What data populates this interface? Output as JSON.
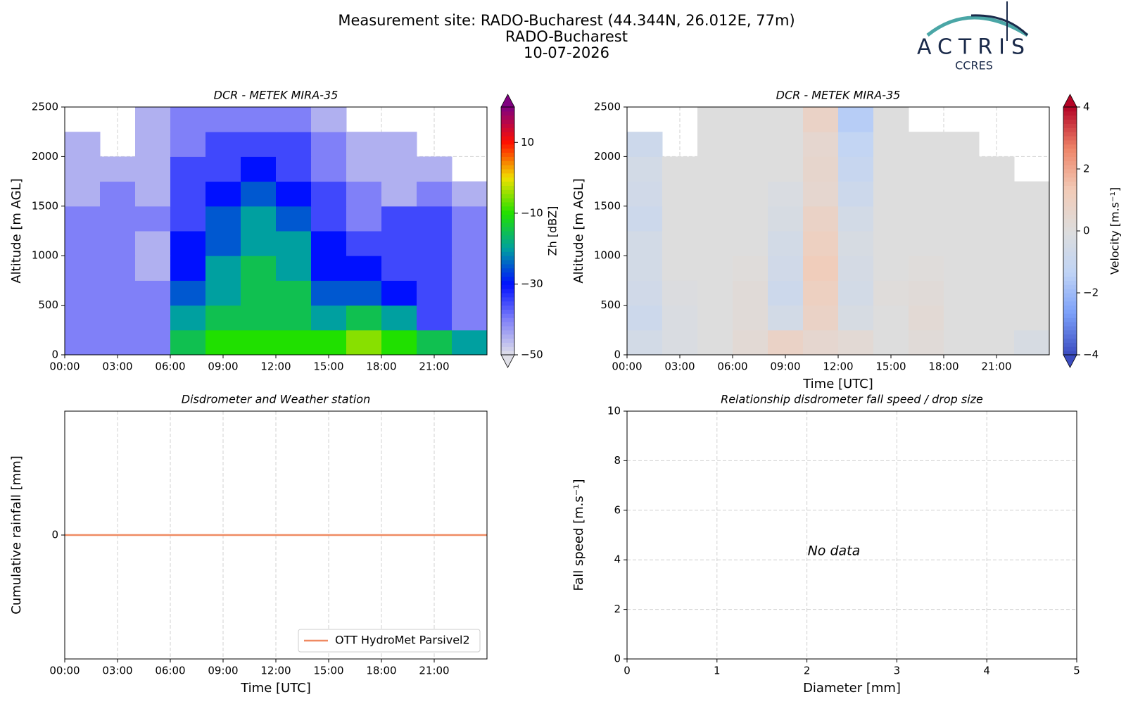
{
  "header": {
    "title_lines": [
      "Measurement site: RADO-Bucharest (44.344N, 26.012E, 77m)",
      "RADO-Bucharest",
      "10-07-2026"
    ],
    "logo": {
      "name": "ACTRIS",
      "subtitle": "CCRES"
    }
  },
  "chart_data": [
    {
      "type": "heatmap",
      "title": "DCR - METEK MIRA-35",
      "ylabel": "Altitude [m AGL]",
      "colorbar_label": "Zh [dBZ]",
      "x": [
        0,
        2,
        4,
        6,
        8,
        10,
        12,
        14,
        16,
        18,
        20,
        22,
        24
      ],
      "y": [
        0,
        250,
        500,
        750,
        1000,
        1250,
        1500,
        1750,
        2000,
        2250,
        2500
      ],
      "z": [
        [
          -40,
          -40,
          -40,
          -15,
          -10,
          -10,
          -10,
          -10,
          -5,
          -10,
          -15,
          -20
        ],
        [
          -40,
          -40,
          -40,
          -20,
          -15,
          -15,
          -15,
          -20,
          -15,
          -20,
          -35,
          -40
        ],
        [
          -40,
          -40,
          -40,
          -25,
          -20,
          -15,
          -15,
          -25,
          -25,
          -30,
          -35,
          -40
        ],
        [
          -40,
          -40,
          -45,
          -30,
          -20,
          -15,
          -20,
          -30,
          -30,
          -35,
          -35,
          -40
        ],
        [
          -40,
          -40,
          -45,
          -30,
          -25,
          -20,
          -20,
          -30,
          -35,
          -35,
          -35,
          -40
        ],
        [
          -40,
          -40,
          -40,
          -35,
          -25,
          -20,
          -25,
          -35,
          -40,
          -35,
          -35,
          -40
        ],
        [
          -45,
          -40,
          -45,
          -35,
          -30,
          -25,
          -30,
          -35,
          -40,
          -45,
          -40,
          -45
        ],
        [
          -45,
          -45,
          -45,
          -35,
          -35,
          -30,
          -35,
          -40,
          -45,
          -45,
          -45,
          null
        ],
        [
          -45,
          null,
          -45,
          -40,
          -35,
          -35,
          -35,
          -40,
          -45,
          -45,
          null,
          null
        ],
        [
          null,
          null,
          -45,
          -40,
          -40,
          -40,
          -40,
          -45,
          null,
          null,
          null,
          null
        ]
      ],
      "xlim": [
        0,
        24
      ],
      "xticks": [
        {
          "value": 0,
          "label": "00:00"
        },
        {
          "value": 3,
          "label": "03:00"
        },
        {
          "value": 6,
          "label": "06:00"
        },
        {
          "value": 9,
          "label": "09:00"
        },
        {
          "value": 12,
          "label": "12:00"
        },
        {
          "value": 15,
          "label": "15:00"
        },
        {
          "value": 18,
          "label": "18:00"
        },
        {
          "value": 21,
          "label": "21:00"
        }
      ],
      "ylim": [
        0,
        2500
      ],
      "yticks": [
        0,
        500,
        1000,
        1500,
        2000,
        2500
      ],
      "grid": true,
      "clim": [
        -50,
        20
      ],
      "cticks": [
        {
          "value": -50,
          "label": "−50"
        },
        {
          "value": -30,
          "label": "−30"
        },
        {
          "value": -10,
          "label": "−10"
        },
        10
      ],
      "colormap": [
        "#e0e0e8",
        "#8080f8",
        "#0010ff",
        "#00a0a0",
        "#20e000",
        "#f0e000",
        "#ff1000",
        "#800080"
      ]
    },
    {
      "type": "heatmap",
      "title": "DCR - METEK MIRA-35",
      "xlabel": "Time [UTC]",
      "ylabel": "Altitude [m AGL]",
      "colorbar_label": "Velocity [m.s⁻¹]",
      "x": [
        0,
        2,
        4,
        6,
        8,
        10,
        12,
        14,
        16,
        18,
        20,
        22,
        24
      ],
      "y": [
        0,
        250,
        500,
        750,
        1000,
        1250,
        1500,
        1750,
        2000,
        2250,
        2500
      ],
      "z": [
        [
          -0.5,
          -0.2,
          0,
          0.3,
          0.8,
          0.5,
          0.3,
          0,
          0.2,
          0,
          0,
          -0.3
        ],
        [
          -0.8,
          -0.2,
          0,
          0.2,
          -0.5,
          0.8,
          -0.3,
          0,
          0.3,
          0,
          0,
          0
        ],
        [
          -0.6,
          -0.1,
          0,
          0.2,
          -0.8,
          1,
          -0.5,
          0.1,
          0.2,
          0,
          0,
          0
        ],
        [
          -0.5,
          0,
          0,
          0.1,
          -0.6,
          1.2,
          -0.4,
          0,
          0.1,
          0,
          0,
          0
        ],
        [
          -0.5,
          0,
          0,
          0,
          -0.5,
          1,
          -0.3,
          0,
          0,
          0,
          0,
          0
        ],
        [
          -0.8,
          0,
          0,
          0,
          -0.3,
          0.8,
          -0.5,
          0,
          0,
          0,
          0,
          0
        ],
        [
          -0.6,
          0,
          0,
          0,
          -0.2,
          0.5,
          -0.8,
          0,
          0,
          0,
          0,
          0
        ],
        [
          -0.5,
          0,
          0,
          0,
          0,
          0.6,
          -1,
          0,
          0,
          0,
          0,
          null
        ],
        [
          -0.8,
          null,
          0,
          0,
          0,
          0.5,
          -1.2,
          0,
          0,
          0,
          null,
          null
        ],
        [
          null,
          null,
          0,
          0,
          0,
          0.8,
          -1.5,
          0,
          null,
          null,
          null,
          null
        ]
      ],
      "xlim": [
        0,
        24
      ],
      "xticks": [
        {
          "value": 0,
          "label": "00:00"
        },
        {
          "value": 3,
          "label": "03:00"
        },
        {
          "value": 6,
          "label": "06:00"
        },
        {
          "value": 9,
          "label": "09:00"
        },
        {
          "value": 12,
          "label": "12:00"
        },
        {
          "value": 15,
          "label": "15:00"
        },
        {
          "value": 18,
          "label": "18:00"
        },
        {
          "value": 21,
          "label": "21:00"
        }
      ],
      "ylim": [
        0,
        2500
      ],
      "yticks": [
        0,
        500,
        1000,
        1500,
        2000,
        2500
      ],
      "grid": true,
      "clim": [
        -4,
        4
      ],
      "cticks": [
        {
          "value": -4,
          "label": "−4"
        },
        {
          "value": -2,
          "label": "−2"
        },
        0,
        2,
        4
      ],
      "colormap": [
        "#3b4cc0",
        "#7b9ff9",
        "#c0d4f5",
        "#dddddd",
        "#f2cbb7",
        "#ee8468",
        "#b40426"
      ]
    },
    {
      "type": "line",
      "title": "Disdrometer and Weather station",
      "xlabel": "Time [UTC]",
      "ylabel": "Cumulative rainfall [mm]",
      "x": [
        0,
        24
      ],
      "series": [
        {
          "name": "OTT HydroMet Parsivel2",
          "color": "#ef8a62",
          "values": [
            0,
            0
          ]
        }
      ],
      "xlim": [
        0,
        24
      ],
      "xticks": [
        {
          "value": 0,
          "label": "00:00"
        },
        {
          "value": 3,
          "label": "03:00"
        },
        {
          "value": 6,
          "label": "06:00"
        },
        {
          "value": 9,
          "label": "09:00"
        },
        {
          "value": 12,
          "label": "12:00"
        },
        {
          "value": 15,
          "label": "15:00"
        },
        {
          "value": 18,
          "label": "18:00"
        },
        {
          "value": 21,
          "label": "21:00"
        }
      ],
      "ylim": [
        -0.055,
        0.055
      ],
      "yticks": [
        0
      ],
      "grid": true,
      "legend": "lower-right"
    },
    {
      "type": "scatter",
      "title": "Relationship disdrometer fall speed / drop size",
      "xlabel": "Diameter [mm]",
      "ylabel": "Fall speed [m.s⁻¹]",
      "annotation": "No data",
      "xlim": [
        0,
        5
      ],
      "xticks": [
        0,
        1,
        2,
        3,
        4,
        5
      ],
      "ylim": [
        0,
        10
      ],
      "yticks": [
        0,
        2,
        4,
        6,
        8,
        10
      ],
      "grid": true
    }
  ]
}
